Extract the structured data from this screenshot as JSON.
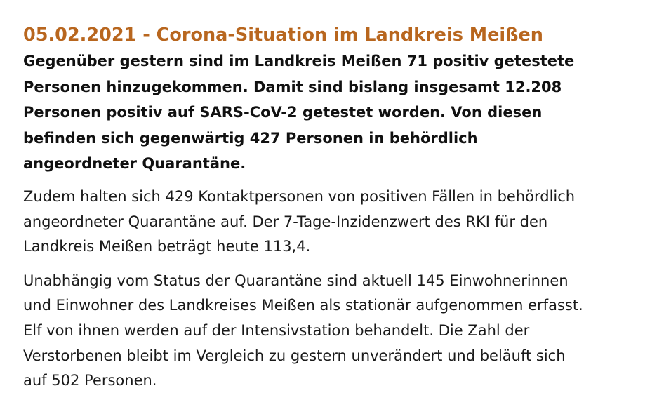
{
  "article": {
    "title": "05.02.2021 - Corona-Situation im Landkreis Meißen",
    "lead_lines": [
      "Gegenüber gestern sind im Landkreis Meißen 71 positiv getestete",
      "Personen hinzugekommen. Damit sind bislang insgesamt 12.208",
      "Personen positiv auf SARS-CoV-2 getestet worden. Von diesen",
      "befinden sich gegenwärtig 427 Personen in behördlich",
      "angeordneter Quarantäne."
    ],
    "paragraph1_lines": [
      "Zudem halten sich 429 Kontaktpersonen von positiven Fällen in behördlich",
      "angeordneter Quarantäne auf. Der 7-Tage-Inzidenzwert des RKI für den",
      "Landkreis Meißen beträgt heute 113,4."
    ],
    "paragraph2_lines": [
      "Unabhängig vom Status der Quarantäne sind aktuell 145 Einwohnerinnen",
      "und Einwohner des Landkreises Meißen als stationär aufgenommen erfasst.",
      "Elf von ihnen werden auf der Intensivstation behandelt. Die Zahl der",
      "Verstorbenen bleibt im Vergleich zu gestern unverändert und beläuft sich",
      "auf 502 Personen."
    ],
    "colors": {
      "title": "#b8661e",
      "text": "#111111",
      "background": "#ffffff"
    }
  }
}
